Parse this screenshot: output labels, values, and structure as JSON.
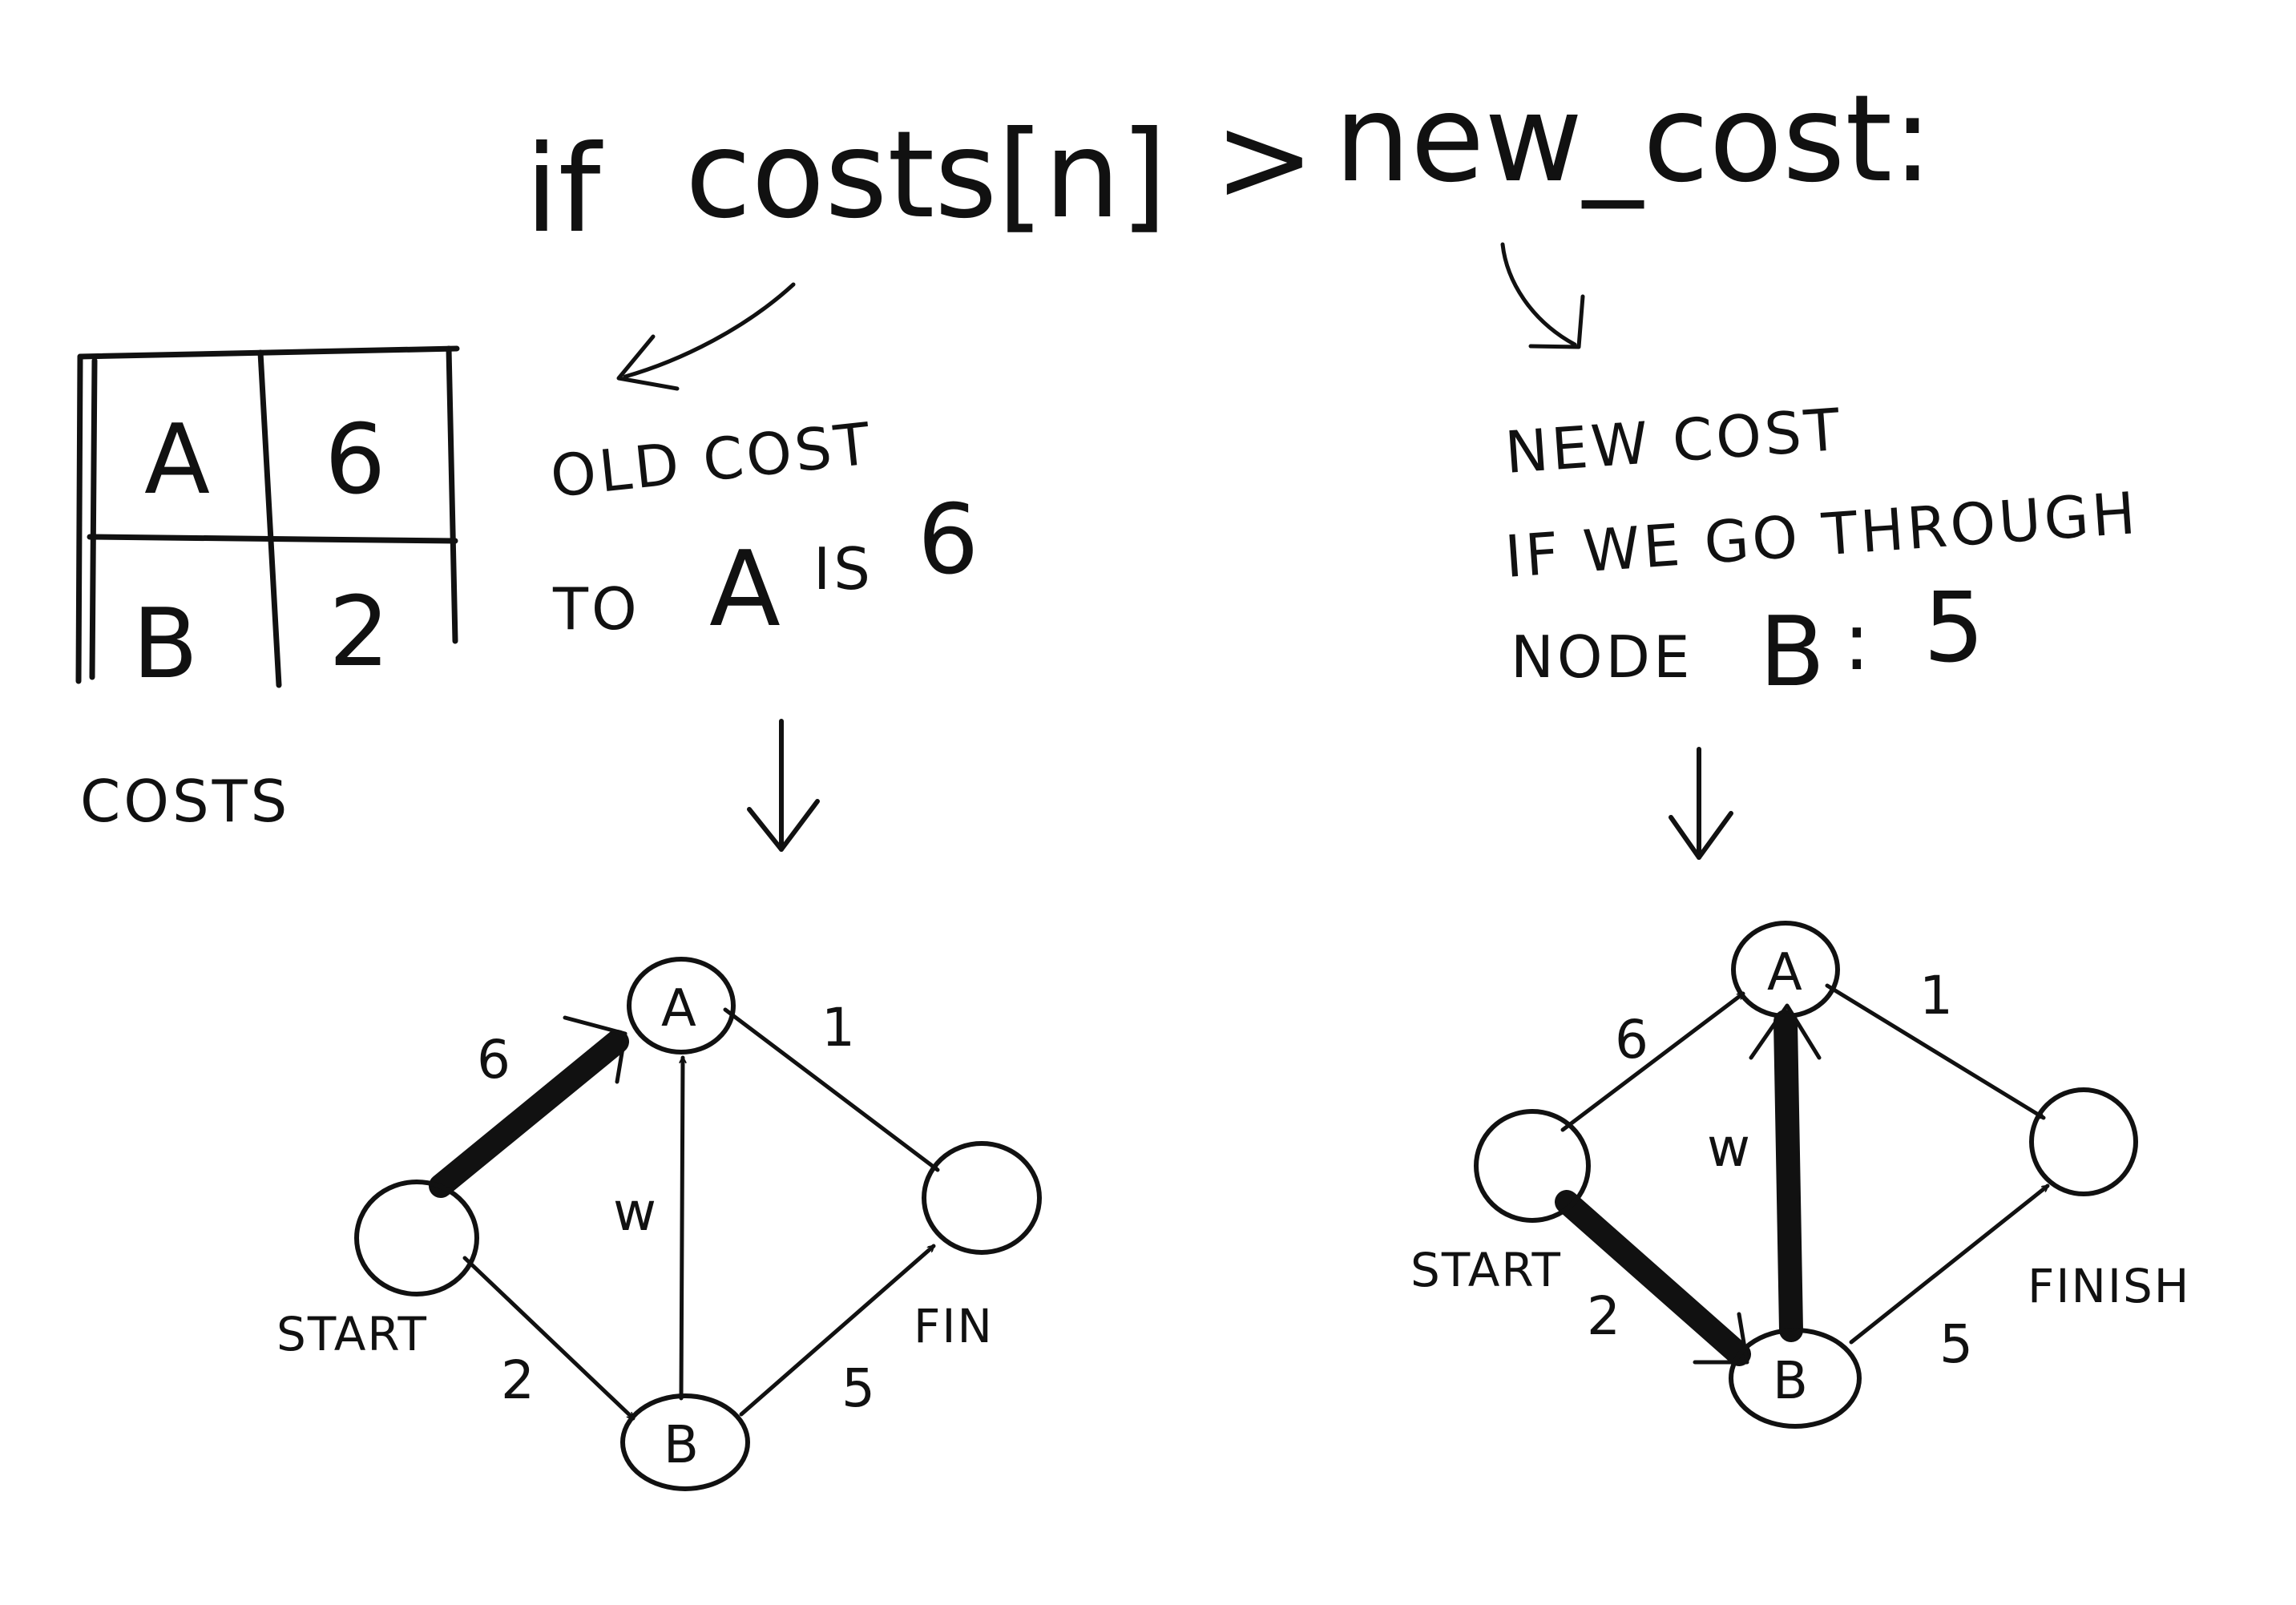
{
  "code_line": {
    "if_keyword": "if",
    "lhs": "costs[n]",
    "operator": ">",
    "rhs": "new_cost:"
  },
  "costs_table": {
    "caption": "COSTS",
    "rows": [
      {
        "node": "A",
        "cost": "6"
      },
      {
        "node": "B",
        "cost": "2"
      }
    ]
  },
  "old_cost_note": {
    "line1": "OLD COST",
    "line2_prefix": "TO",
    "line2_node": "A",
    "line2_is": "IS",
    "line2_value": "6"
  },
  "new_cost_note": {
    "line1": "NEW COST",
    "line2": "IF WE GO THROUGH",
    "line3_prefix": "NODE",
    "line3_node": "B",
    "line3_sep": ":",
    "line3_value": "5"
  },
  "graph_left": {
    "nodes": {
      "a": "A",
      "b": "B"
    },
    "labels": {
      "start": "START",
      "finish": "FIN"
    },
    "weights": {
      "start_a": "6",
      "start_b": "2",
      "b_a": "w",
      "a_fin": "1",
      "b_fin": "5"
    }
  },
  "graph_right": {
    "nodes": {
      "a": "A",
      "b": "B"
    },
    "labels": {
      "start": "START",
      "finish": "FINISH"
    },
    "weights": {
      "start_a": "6",
      "start_b": "2",
      "b_a": "w",
      "a_fin": "1",
      "b_fin": "5"
    }
  }
}
